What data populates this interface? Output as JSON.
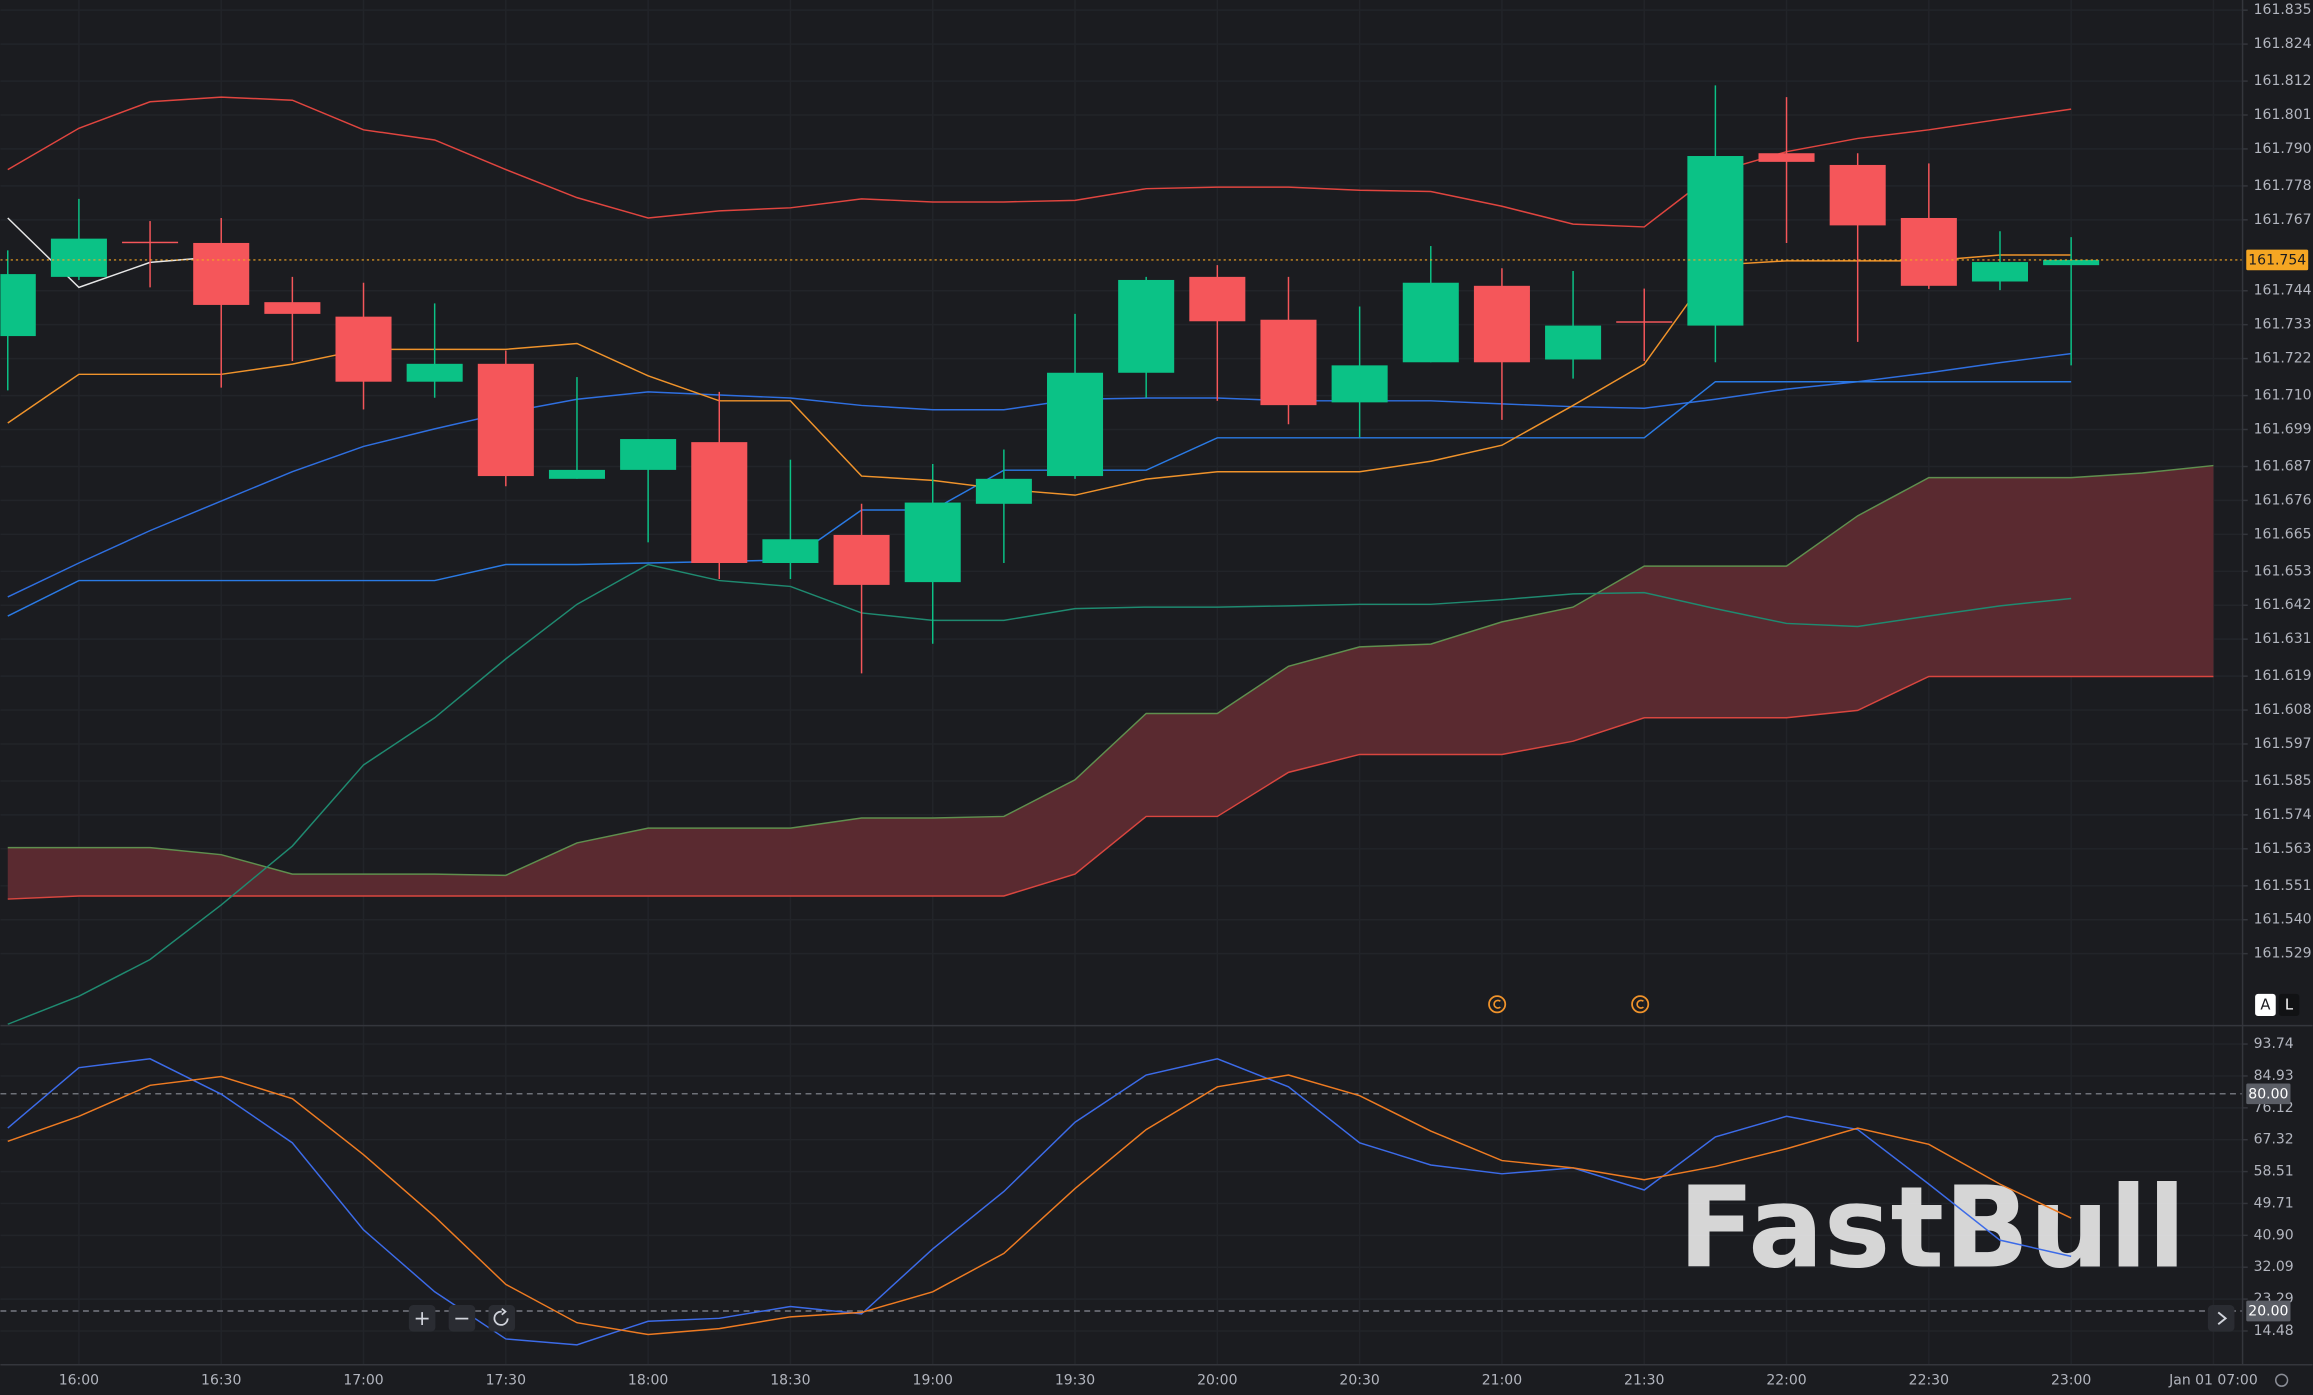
{
  "watermark": "FastBull",
  "controls": {
    "zoom_in": "+",
    "zoom_out": "−"
  },
  "scale_buttons": [
    "A",
    "L"
  ],
  "chart_data": [
    {
      "type": "candlestick",
      "categories": [
        null,
        "16:00",
        null,
        "16:30",
        null,
        "17:00",
        null,
        "17:30",
        null,
        "18:00",
        null,
        "18:30",
        null,
        "19:00",
        null,
        "19:30",
        null,
        "20:00",
        null,
        "20:30",
        null,
        "21:00",
        null,
        "21:30",
        null,
        "22:00",
        null,
        "22:30",
        null,
        "23:00",
        null,
        "Jan 01 07:00"
      ],
      "open": [
        161.7293,
        161.7485,
        161.7599,
        161.7595,
        161.7403,
        161.7356,
        161.7145,
        161.7203,
        161.683,
        161.6859,
        161.6949,
        161.6557,
        161.6648,
        161.6495,
        161.6749,
        161.6839,
        161.7174,
        161.7485,
        161.7346,
        161.7078,
        161.7208,
        161.7456,
        161.7217,
        161.7341,
        161.7327,
        161.7886,
        161.7848,
        161.7676,
        161.747,
        161.7523,
        null,
        null
      ],
      "high": [
        161.7571,
        161.7738,
        161.7666,
        161.7676,
        161.7485,
        161.7466,
        161.7399,
        161.7246,
        161.716,
        161.6959,
        161.7112,
        161.6892,
        161.6749,
        161.6878,
        161.6925,
        161.7365,
        161.7485,
        161.7523,
        161.7485,
        161.7389,
        161.7585,
        161.7513,
        161.7504,
        161.7447,
        161.8106,
        161.8068,
        161.7886,
        161.7853,
        161.7633,
        161.7614,
        null,
        null
      ],
      "low": [
        161.7117,
        161.7475,
        161.7451,
        161.7126,
        161.7212,
        161.7055,
        161.7093,
        161.6806,
        161.683,
        161.6624,
        161.6505,
        161.6505,
        161.6199,
        161.6295,
        161.6557,
        161.683,
        161.7093,
        161.7083,
        161.7007,
        161.6964,
        161.7208,
        161.7021,
        161.7155,
        161.7212,
        161.7208,
        161.7595,
        161.7274,
        161.7446,
        161.7442,
        161.7198,
        null,
        null
      ],
      "close": [
        161.7494,
        161.7609,
        161.7599,
        161.7394,
        161.7365,
        161.7145,
        161.7203,
        161.6839,
        161.6859,
        161.6959,
        161.6557,
        161.6634,
        161.6486,
        161.6753,
        161.683,
        161.7174,
        161.7475,
        161.7341,
        161.7069,
        161.7198,
        161.7466,
        161.7208,
        161.7327,
        161.7341,
        161.7877,
        161.7858,
        161.7652,
        161.7456,
        161.7533,
        161.754,
        null,
        null
      ],
      "up_color": "#0bc286",
      "down_color": "#f5565a",
      "series": [
        {
          "color": "#5f8f4e",
          "fill_to_next": "#5e2b31",
          "values": [
            161.5634,
            161.5634,
            161.5634,
            161.5611,
            161.5548,
            161.5548,
            161.5548,
            161.5544,
            161.5649,
            161.5697,
            161.5697,
            161.5697,
            161.573,
            161.573,
            161.5735,
            161.5854,
            161.6069,
            161.6069,
            161.6222,
            161.6285,
            161.6294,
            161.6366,
            161.6414,
            161.6547,
            161.6547,
            161.6547,
            161.671,
            161.6834,
            161.6834,
            161.6834,
            161.6849,
            161.6873
          ]
        },
        {
          "color": "#d9463f",
          "values": [
            161.5467,
            161.5477,
            161.5477,
            161.5477,
            161.5477,
            161.5477,
            161.5477,
            161.5477,
            161.5477,
            161.5477,
            161.5477,
            161.5477,
            161.5477,
            161.5477,
            161.5477,
            161.5548,
            161.5735,
            161.5735,
            161.5878,
            161.5936,
            161.5936,
            161.5936,
            161.5979,
            161.6055,
            161.6055,
            161.6055,
            161.6079,
            161.6189,
            161.6189,
            161.6189,
            161.6189,
            161.6189
          ]
        },
        {
          "color": "#e0453f",
          "values": [
            161.7833,
            161.7967,
            161.8053,
            161.8068,
            161.8058,
            161.7962,
            161.7929,
            161.7833,
            161.7742,
            161.7676,
            161.7699,
            161.7709,
            161.7738,
            161.7728,
            161.7728,
            161.7733,
            161.7771,
            161.7776,
            161.7776,
            161.7766,
            161.7762,
            161.7714,
            161.7656,
            161.7647,
            161.7824,
            161.7891,
            161.7934,
            161.7962,
            161.7996,
            161.8029,
            null,
            null
          ]
        },
        {
          "color": "#1f8a70",
          "values": [
            161.5061,
            161.5152,
            161.5271,
            161.5448,
            161.5639,
            161.5902,
            161.6055,
            161.6246,
            161.6423,
            161.6552,
            161.65,
            161.6481,
            161.6395,
            161.6371,
            161.6371,
            161.6409,
            161.6414,
            161.6414,
            161.6418,
            161.6423,
            161.6423,
            161.6438,
            161.6457,
            161.6461,
            161.6409,
            161.6361,
            161.6351,
            161.6385,
            161.6418,
            161.6442,
            null,
            null
          ]
        },
        {
          "color": "#2f6fe0",
          "values": [
            161.6447,
            161.6557,
            161.6662,
            161.6758,
            161.6853,
            161.6935,
            161.6992,
            161.7045,
            161.7088,
            161.7112,
            161.7102,
            161.7092,
            161.7068,
            161.7054,
            161.7054,
            161.7088,
            161.7092,
            161.7092,
            161.7083,
            161.7083,
            161.7083,
            161.7073,
            161.7064,
            161.7059,
            161.7088,
            161.7121,
            161.7145,
            161.7174,
            161.7207,
            161.7236,
            null,
            null
          ]
        },
        {
          "color": "#2a7ae4",
          "values": [
            161.6385,
            161.65,
            161.65,
            161.65,
            161.65,
            161.65,
            161.65,
            161.6552,
            161.6552,
            161.6557,
            161.6562,
            161.6567,
            161.6729,
            161.6729,
            161.6858,
            161.6858,
            161.6858,
            161.6963,
            161.6963,
            161.6963,
            161.6963,
            161.6963,
            161.6963,
            161.6963,
            161.7145,
            161.7145,
            161.7145,
            161.7145,
            161.7145,
            161.7145,
            null,
            null
          ]
        },
        {
          "color": "#f0932b",
          "values": [
            161.7011,
            161.7169,
            161.7169,
            161.7169,
            161.7202,
            161.725,
            161.725,
            161.725,
            161.7269,
            161.7164,
            161.7083,
            161.7083,
            161.6839,
            161.6825,
            161.6796,
            161.6777,
            161.6829,
            161.6853,
            161.6853,
            161.6853,
            161.6887,
            161.6939,
            161.7068,
            161.7202,
            161.7523,
            161.7537,
            161.7537,
            161.7537,
            161.7556,
            161.7556,
            null,
            null
          ]
        },
        {
          "color": "#e6e6e6",
          "values": [
            161.7676,
            161.7451,
            161.7532,
            161.7551,
            null,
            null,
            null,
            null,
            null,
            null,
            null,
            null,
            null,
            null,
            null,
            null,
            null,
            null,
            null,
            null,
            null,
            null,
            null,
            null,
            null,
            null,
            null,
            null,
            null,
            null,
            null,
            null
          ]
        }
      ],
      "last_price": 161.754,
      "last_price_color": "#f5a623",
      "ylim": [
        161.5059,
        161.8383
      ],
      "yticks": [
        161.835,
        161.824,
        161.812,
        161.801,
        {
          "value": 161.79,
          "label": "161.790"
        },
        161.778,
        161.767,
        161.744,
        161.733,
        161.722,
        {
          "value": 161.71,
          "label": "161.710"
        },
        161.699,
        161.687,
        161.676,
        161.665,
        161.653,
        161.642,
        161.631,
        161.619,
        161.608,
        161.597,
        161.585,
        161.574,
        161.563,
        161.551,
        {
          "value": 161.54,
          "label": "161.540"
        },
        161.529
      ],
      "grid": true
    },
    {
      "type": "line",
      "series": [
        {
          "color": "#3c6be8",
          "values": [
            70.52,
            87.22,
            89.67,
            79.89,
            66.45,
            42.42,
            25.31,
            12.28,
            10.65,
            17.17,
            17.98,
            21.24,
            19.2,
            37.13,
            53.01,
            72.15,
            85.19,
            89.67,
            81.93,
            66.45,
            60.34,
            57.9,
            59.53,
            53.42,
            68.08,
            73.78,
            70.12,
            55.05,
            39.57,
            35.09,
            null,
            null
          ]
        },
        {
          "color": "#ee7b22",
          "values": [
            66.86,
            73.78,
            82.34,
            84.78,
            78.67,
            63.19,
            46.09,
            27.35,
            16.76,
            13.5,
            15.13,
            18.39,
            19.61,
            25.31,
            35.9,
            53.82,
            70.12,
            81.93,
            85.19,
            79.48,
            69.71,
            61.56,
            59.53,
            56.27,
            59.93,
            64.82,
            70.52,
            66.04,
            55.05,
            45.68,
            null,
            null
          ]
        }
      ],
      "levels": [
        {
          "value": 80,
          "label": "80.00"
        },
        {
          "value": 20,
          "label": "20.00"
        }
      ],
      "ylim": [
        5.35,
        99.04
      ],
      "yticks": [
        93.74,
        84.93,
        76.12,
        67.32,
        58.51,
        49.71,
        {
          "value": 40.9,
          "label": "40.90"
        },
        32.09,
        23.29,
        14.48
      ],
      "grid": true
    }
  ]
}
